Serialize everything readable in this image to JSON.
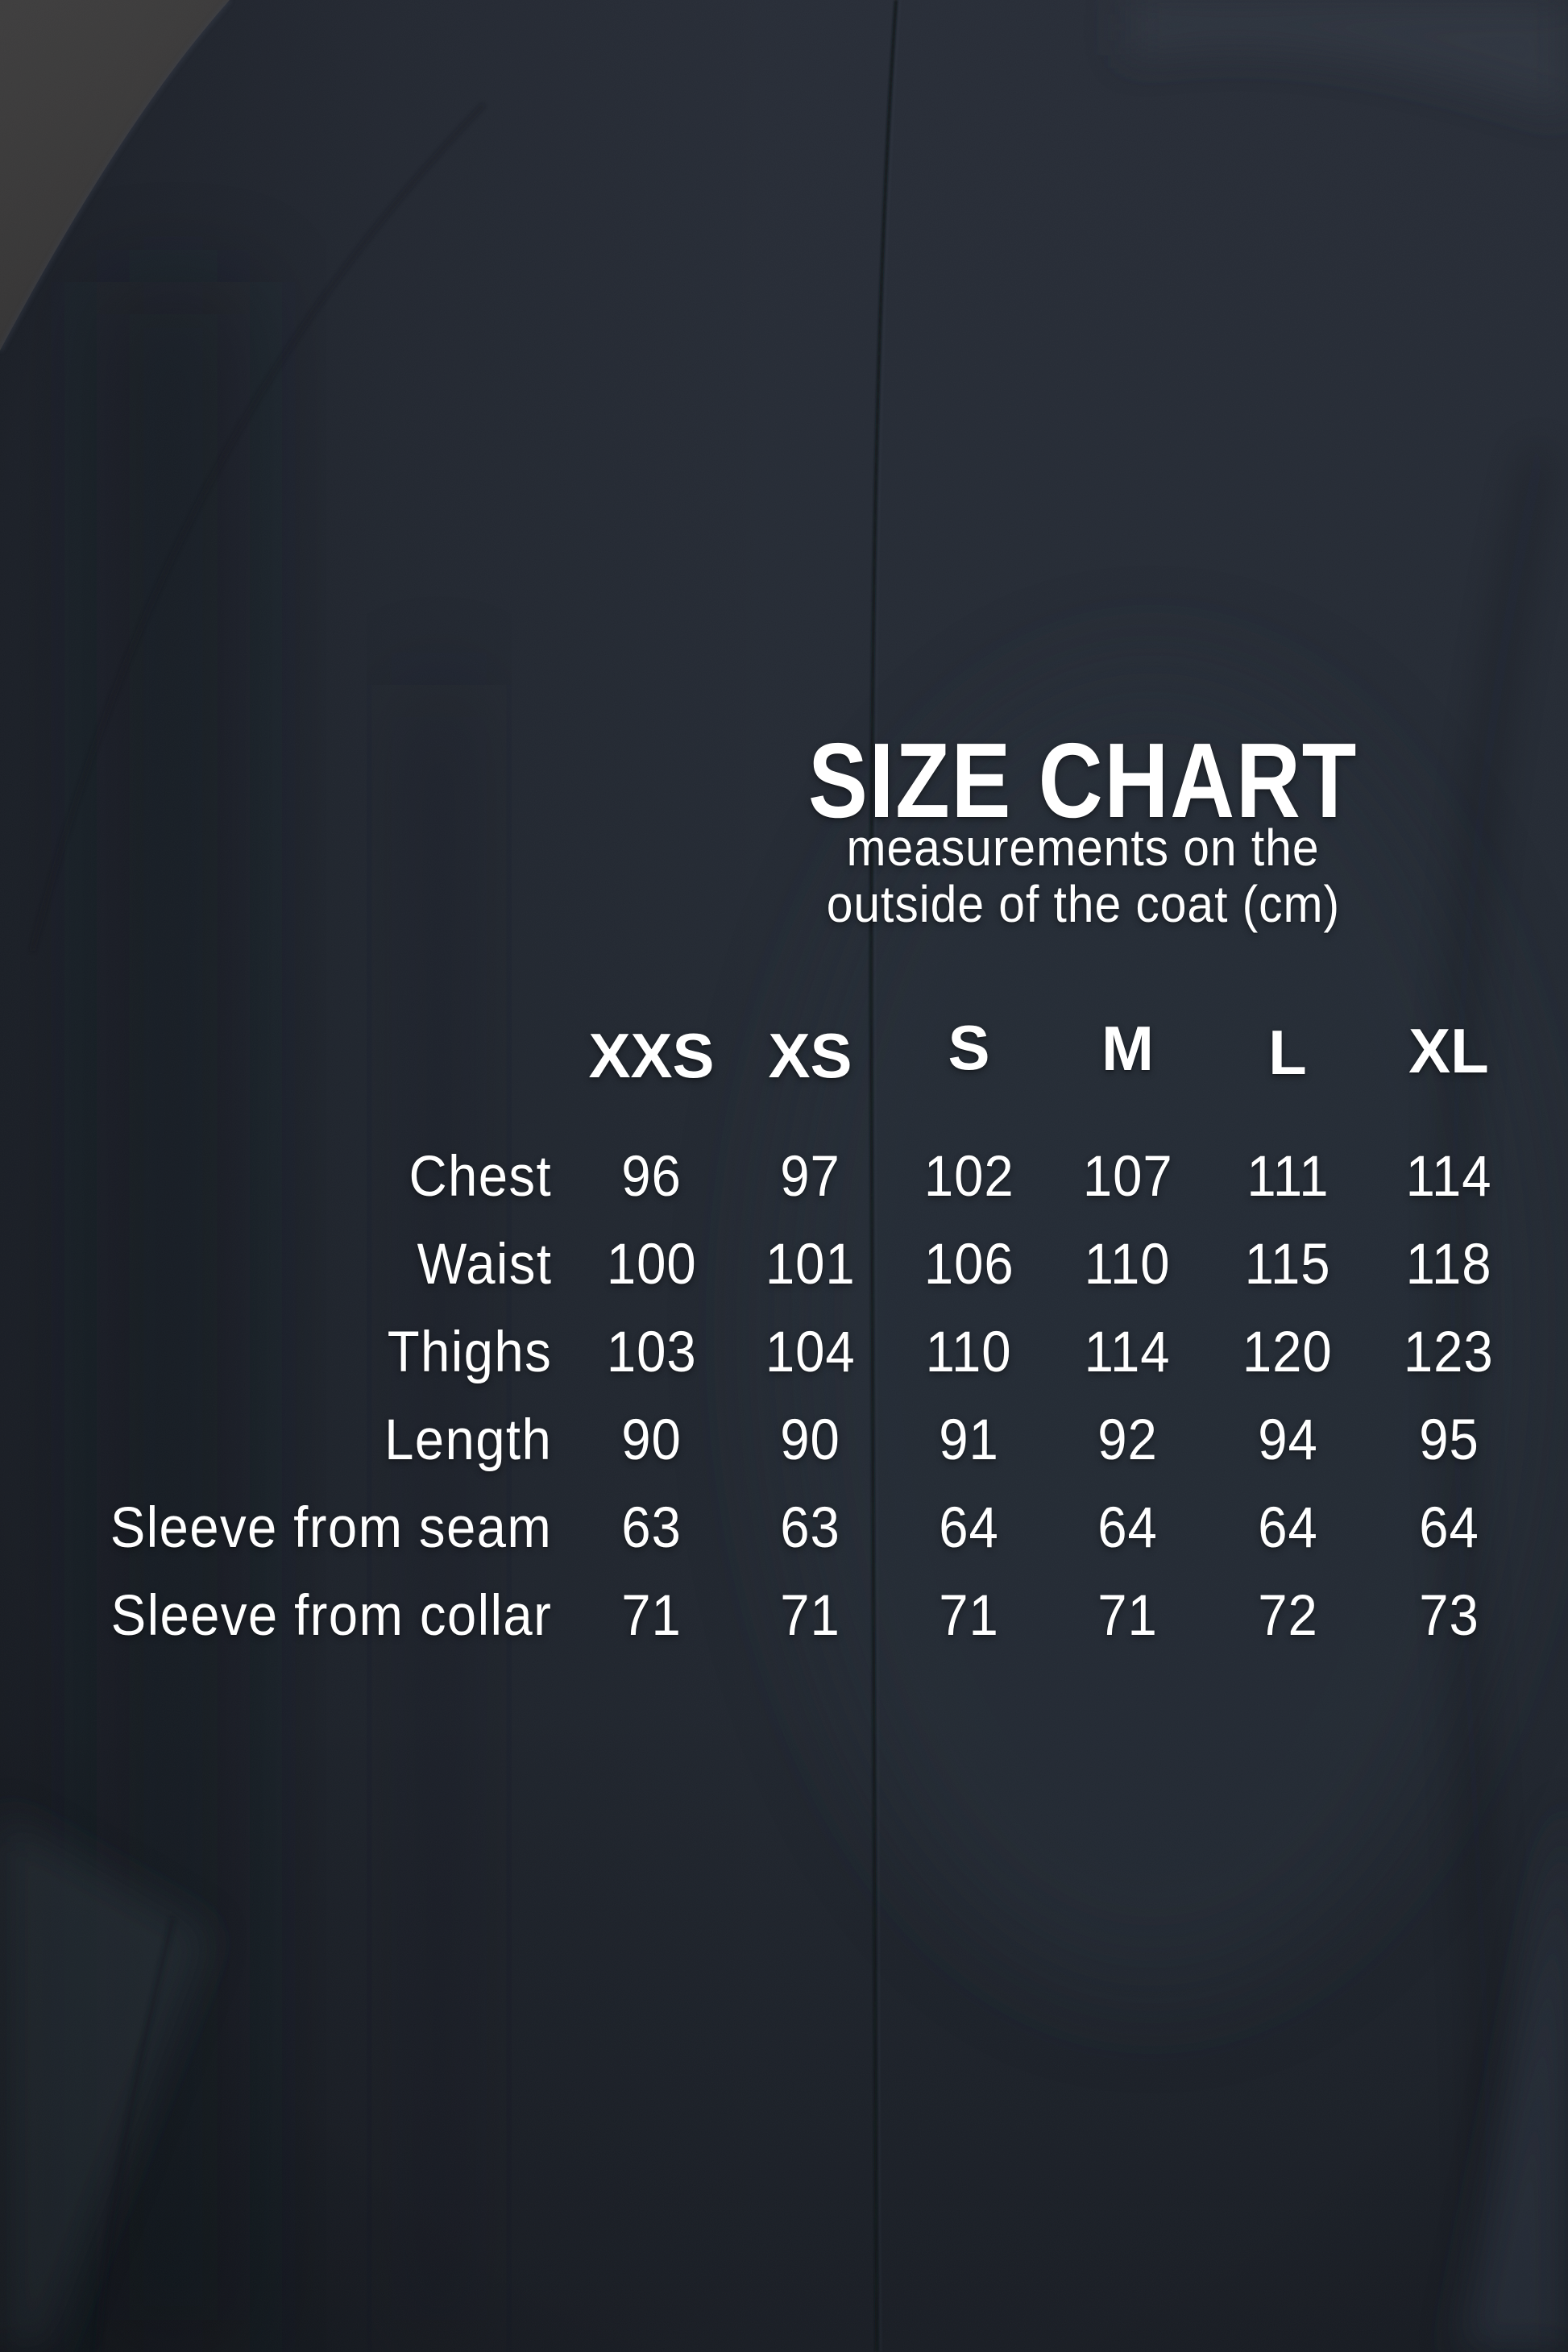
{
  "header": {
    "title": "SIZE CHART",
    "subtitle_line1": "measurements on the",
    "subtitle_line2": "outside of the coat (cm)"
  },
  "colors": {
    "coat_fabric": "#242a33",
    "coat_shadow": "#1b2028",
    "wall_background": "#3d3c3c",
    "text": "#ffffff"
  },
  "chart_data": {
    "type": "table",
    "title": "SIZE CHART",
    "subtitle": "measurements on the outside of the coat (cm)",
    "unit": "cm",
    "columns": [
      "XXS",
      "XS",
      "S",
      "M",
      "L",
      "XL"
    ],
    "rows": [
      {
        "label": "Chest",
        "values": [
          96,
          97,
          102,
          107,
          111,
          114
        ]
      },
      {
        "label": "Waist",
        "values": [
          100,
          101,
          106,
          110,
          115,
          118
        ]
      },
      {
        "label": "Thighs",
        "values": [
          103,
          104,
          110,
          114,
          120,
          123
        ]
      },
      {
        "label": "Length",
        "values": [
          90,
          90,
          91,
          92,
          94,
          95
        ]
      },
      {
        "label": "Sleeve from seam",
        "values": [
          63,
          63,
          64,
          64,
          64,
          64
        ]
      },
      {
        "label": "Sleeve from collar",
        "values": [
          71,
          71,
          71,
          71,
          72,
          73
        ]
      }
    ]
  }
}
